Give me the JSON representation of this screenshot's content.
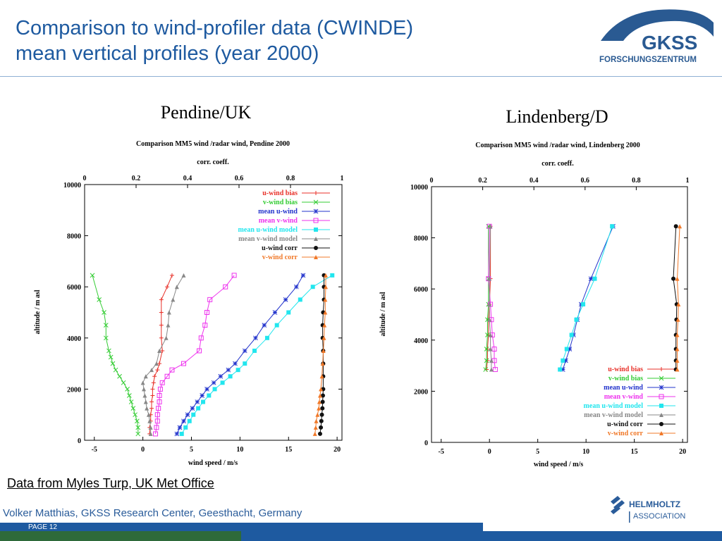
{
  "slide": {
    "title_line1": "Comparison to  wind-profiler data (CWINDE)",
    "title_line2": "mean vertical profiles (year 2000)",
    "source_note": "Data from Myles Turp, UK Met Office",
    "author": "Volker Matthias, GKSS Research Center, Geesthacht, Germany",
    "page_label": "PAGE 12",
    "logo_gkss_text": "GKSS",
    "logo_gkss_subtext": "FORSCHUNGSZENTRUM",
    "logo_helmholtz_line1": "HELMHOLTZ",
    "logo_helmholtz_line2": "ASSOCIATION"
  },
  "colors": {
    "u_wind_bias": "#e8322a",
    "v_wind_bias": "#33cc33",
    "mean_u_wind": "#2233cc",
    "mean_v_wind": "#ee33ee",
    "mean_u_wind_model": "#22e6ee",
    "mean_v_wind_model": "#888888",
    "u_wind_corr": "#111111",
    "v_wind_corr": "#f07828",
    "title_blue": "#1e5aa0"
  },
  "chart_data": [
    {
      "type": "line",
      "panel_title": "Pendine/UK",
      "title": "Comparison MM5 wind /radar wind, Pendine 2000",
      "xlabel": "wind speed / m/s",
      "ylabel": "altitude / m asl",
      "x2label": "corr. coeff.",
      "xlim": [
        -6,
        20.5
      ],
      "ylim": [
        0,
        10000
      ],
      "x2lim": [
        0,
        1
      ],
      "xticks": [
        -5,
        0,
        5,
        10,
        15,
        20
      ],
      "yticks": [
        0,
        2000,
        4000,
        6000,
        8000,
        10000
      ],
      "x2ticks": [
        "0",
        "0.2",
        "0.4",
        "0.6",
        "0.8",
        "1"
      ],
      "legend_position": "top-right",
      "series": [
        {
          "name": "u-wind bias",
          "color_key": "u_wind_bias",
          "marker": "plus",
          "corr": false,
          "points": [
            [
              0.7,
              250
            ],
            [
              0.7,
              500
            ],
            [
              0.8,
              750
            ],
            [
              0.8,
              1000
            ],
            [
              0.9,
              1250
            ],
            [
              0.9,
              1500
            ],
            [
              1.0,
              1750
            ],
            [
              1.0,
              2000
            ],
            [
              1.1,
              2250
            ],
            [
              1.2,
              2500
            ],
            [
              1.5,
              2750
            ],
            [
              1.7,
              3000
            ],
            [
              2.0,
              3500
            ],
            [
              1.9,
              4000
            ],
            [
              1.9,
              4500
            ],
            [
              1.9,
              5000
            ],
            [
              1.9,
              5500
            ],
            [
              2.5,
              6000
            ],
            [
              3.0,
              6450
            ]
          ]
        },
        {
          "name": "v-wind bias",
          "color_key": "v_wind_bias",
          "marker": "x",
          "corr": false,
          "points": [
            [
              -0.5,
              250
            ],
            [
              -0.5,
              500
            ],
            [
              -0.6,
              750
            ],
            [
              -0.8,
              1000
            ],
            [
              -1.0,
              1250
            ],
            [
              -1.2,
              1500
            ],
            [
              -1.4,
              1750
            ],
            [
              -1.6,
              2000
            ],
            [
              -2.0,
              2250
            ],
            [
              -2.4,
              2500
            ],
            [
              -2.8,
              2750
            ],
            [
              -3.1,
              3000
            ],
            [
              -3.3,
              3250
            ],
            [
              -3.5,
              3500
            ],
            [
              -3.8,
              4000
            ],
            [
              -3.8,
              4500
            ],
            [
              -4.0,
              5000
            ],
            [
              -4.5,
              5500
            ],
            [
              -5.2,
              6450
            ]
          ]
        },
        {
          "name": "mean u-wind",
          "color_key": "mean_u_wind",
          "marker": "star",
          "corr": false,
          "points": [
            [
              3.5,
              250
            ],
            [
              3.8,
              500
            ],
            [
              4.2,
              750
            ],
            [
              4.6,
              1000
            ],
            [
              5.1,
              1250
            ],
            [
              5.6,
              1500
            ],
            [
              6.1,
              1750
            ],
            [
              6.6,
              2000
            ],
            [
              7.3,
              2250
            ],
            [
              8.0,
              2500
            ],
            [
              8.8,
              2750
            ],
            [
              9.5,
              3000
            ],
            [
              10.5,
              3500
            ],
            [
              11.6,
              4000
            ],
            [
              12.5,
              4500
            ],
            [
              13.6,
              5000
            ],
            [
              14.7,
              5500
            ],
            [
              15.8,
              6000
            ],
            [
              16.5,
              6450
            ]
          ]
        },
        {
          "name": "mean v-wind",
          "color_key": "mean_v_wind",
          "marker": "square",
          "corr": false,
          "points": [
            [
              1.3,
              250
            ],
            [
              1.4,
              500
            ],
            [
              1.5,
              750
            ],
            [
              1.5,
              1000
            ],
            [
              1.6,
              1250
            ],
            [
              1.7,
              1500
            ],
            [
              1.7,
              1750
            ],
            [
              1.8,
              2000
            ],
            [
              2.0,
              2250
            ],
            [
              2.5,
              2500
            ],
            [
              3.0,
              2750
            ],
            [
              4.2,
              3000
            ],
            [
              5.8,
              3500
            ],
            [
              6.0,
              4000
            ],
            [
              6.4,
              4500
            ],
            [
              6.6,
              5000
            ],
            [
              6.9,
              5500
            ],
            [
              8.5,
              6000
            ],
            [
              9.4,
              6450
            ]
          ]
        },
        {
          "name": "mean u-wind model",
          "color_key": "mean_u_wind_model",
          "marker": "filled-square",
          "corr": false,
          "points": [
            [
              4.0,
              250
            ],
            [
              4.4,
              500
            ],
            [
              4.8,
              750
            ],
            [
              5.2,
              1000
            ],
            [
              5.7,
              1250
            ],
            [
              6.2,
              1500
            ],
            [
              6.8,
              1750
            ],
            [
              7.4,
              2000
            ],
            [
              8.2,
              2250
            ],
            [
              9.0,
              2500
            ],
            [
              9.8,
              2750
            ],
            [
              10.5,
              3000
            ],
            [
              11.5,
              3500
            ],
            [
              12.8,
              4000
            ],
            [
              13.8,
              4500
            ],
            [
              15.0,
              5000
            ],
            [
              16.2,
              5500
            ],
            [
              17.5,
              6000
            ],
            [
              19.5,
              6450
            ]
          ]
        },
        {
          "name": "mean v-wind model",
          "color_key": "mean_v_wind_model",
          "marker": "triangle",
          "corr": false,
          "points": [
            [
              0.8,
              250
            ],
            [
              0.8,
              500
            ],
            [
              0.7,
              750
            ],
            [
              0.6,
              1000
            ],
            [
              0.4,
              1250
            ],
            [
              0.3,
              1500
            ],
            [
              0.2,
              1750
            ],
            [
              0.1,
              2000
            ],
            [
              0.0,
              2250
            ],
            [
              0.3,
              2500
            ],
            [
              0.9,
              2750
            ],
            [
              1.4,
              3000
            ],
            [
              1.7,
              3500
            ],
            [
              2.4,
              4000
            ],
            [
              2.6,
              4500
            ],
            [
              2.7,
              5000
            ],
            [
              3.1,
              5500
            ],
            [
              3.5,
              6000
            ],
            [
              4.2,
              6450
            ]
          ]
        },
        {
          "name": "u-wind corr",
          "color_key": "u_wind_corr",
          "marker": "filled-circle",
          "corr": true,
          "points": [
            [
              0.915,
              250
            ],
            [
              0.918,
              500
            ],
            [
              0.92,
              750
            ],
            [
              0.922,
              1000
            ],
            [
              0.924,
              1250
            ],
            [
              0.925,
              1500
            ],
            [
              0.926,
              1750
            ],
            [
              0.927,
              2000
            ],
            [
              0.927,
              2500
            ],
            [
              0.927,
              3000
            ],
            [
              0.927,
              3500
            ],
            [
              0.925,
              4000
            ],
            [
              0.925,
              4500
            ],
            [
              0.927,
              5000
            ],
            [
              0.93,
              5500
            ],
            [
              0.93,
              6000
            ],
            [
              0.93,
              6450
            ]
          ]
        },
        {
          "name": "v-wind corr",
          "color_key": "v_wind_corr",
          "marker": "triangle",
          "corr": true,
          "points": [
            [
              0.895,
              250
            ],
            [
              0.898,
              500
            ],
            [
              0.9,
              750
            ],
            [
              0.905,
              1000
            ],
            [
              0.91,
              1250
            ],
            [
              0.912,
              1500
            ],
            [
              0.915,
              1750
            ],
            [
              0.918,
              2000
            ],
            [
              0.922,
              2500
            ],
            [
              0.925,
              3000
            ],
            [
              0.928,
              3500
            ],
            [
              0.93,
              4000
            ],
            [
              0.932,
              4500
            ],
            [
              0.935,
              5000
            ],
            [
              0.935,
              5500
            ],
            [
              0.937,
              6000
            ],
            [
              0.937,
              6450
            ]
          ]
        }
      ]
    },
    {
      "type": "line",
      "panel_title": "Lindenberg/D",
      "title": "Comparison MM5 wind /radar wind, Lindenberg 2000",
      "xlabel": "wind speed / m/s",
      "ylabel": "altitude / m asl",
      "x2label": "corr. coeff.",
      "xlim": [
        -6,
        20.5
      ],
      "ylim": [
        0,
        10000
      ],
      "x2lim": [
        0,
        1
      ],
      "xticks": [
        -5,
        0,
        5,
        10,
        15,
        20
      ],
      "yticks": [
        0,
        2000,
        4000,
        6000,
        8000,
        10000
      ],
      "x2ticks": [
        "0",
        "0.2",
        "0.4",
        "0.6",
        "0.8",
        "1"
      ],
      "legend_position": "bottom-right",
      "series": [
        {
          "name": "u-wind bias",
          "color_key": "u_wind_bias",
          "marker": "plus",
          "corr": false,
          "points": [
            [
              -0.3,
              2850
            ],
            [
              -0.2,
              3200
            ],
            [
              -0.2,
              3650
            ],
            [
              -0.1,
              4200
            ],
            [
              -0.1,
              4800
            ],
            [
              0.0,
              5400
            ],
            [
              0.1,
              6400
            ],
            [
              0.1,
              8450
            ]
          ]
        },
        {
          "name": "v-wind bias",
          "color_key": "v_wind_bias",
          "marker": "x",
          "corr": false,
          "points": [
            [
              -0.4,
              2850
            ],
            [
              -0.3,
              3200
            ],
            [
              -0.3,
              3650
            ],
            [
              -0.2,
              4200
            ],
            [
              -0.2,
              4800
            ],
            [
              -0.1,
              5400
            ],
            [
              -0.1,
              6400
            ],
            [
              -0.1,
              8450
            ]
          ]
        },
        {
          "name": "mean u-wind",
          "color_key": "mean_u_wind",
          "marker": "star",
          "corr": false,
          "points": [
            [
              7.6,
              2850
            ],
            [
              7.9,
              3200
            ],
            [
              8.3,
              3650
            ],
            [
              8.7,
              4200
            ],
            [
              9.1,
              4800
            ],
            [
              9.5,
              5400
            ],
            [
              10.5,
              6400
            ],
            [
              12.8,
              8450
            ]
          ]
        },
        {
          "name": "mean v-wind",
          "color_key": "mean_v_wind",
          "marker": "square",
          "corr": false,
          "points": [
            [
              0.6,
              2850
            ],
            [
              0.5,
              3200
            ],
            [
              0.5,
              3650
            ],
            [
              0.3,
              4200
            ],
            [
              0.2,
              4800
            ],
            [
              0.1,
              5400
            ],
            [
              -0.1,
              6400
            ],
            [
              0.0,
              8450
            ]
          ]
        },
        {
          "name": "mean u-wind model",
          "color_key": "mean_u_wind_model",
          "marker": "filled-square",
          "corr": false,
          "points": [
            [
              7.3,
              2850
            ],
            [
              7.6,
              3200
            ],
            [
              8.0,
              3650
            ],
            [
              8.5,
              4200
            ],
            [
              9.0,
              4800
            ],
            [
              9.7,
              5400
            ],
            [
              10.9,
              6400
            ],
            [
              12.7,
              8450
            ]
          ]
        },
        {
          "name": "mean v-wind model",
          "color_key": "mean_v_wind_model",
          "marker": "triangle",
          "corr": false,
          "points": [
            [
              0.2,
              2850
            ],
            [
              0.2,
              3200
            ],
            [
              0.1,
              3650
            ],
            [
              0.1,
              4200
            ],
            [
              0.0,
              4800
            ],
            [
              0.0,
              5400
            ],
            [
              0.0,
              6400
            ],
            [
              0.1,
              8450
            ]
          ]
        },
        {
          "name": "u-wind corr",
          "color_key": "u_wind_corr",
          "marker": "filled-circle",
          "corr": true,
          "points": [
            [
              0.955,
              2850
            ],
            [
              0.955,
              3200
            ],
            [
              0.955,
              3650
            ],
            [
              0.955,
              4200
            ],
            [
              0.957,
              4800
            ],
            [
              0.958,
              5400
            ],
            [
              0.945,
              6400
            ],
            [
              0.955,
              8450
            ]
          ]
        },
        {
          "name": "v-wind corr",
          "color_key": "v_wind_corr",
          "marker": "triangle",
          "corr": true,
          "points": [
            [
              0.96,
              2850
            ],
            [
              0.96,
              3200
            ],
            [
              0.96,
              3650
            ],
            [
              0.96,
              4200
            ],
            [
              0.963,
              4800
            ],
            [
              0.965,
              5400
            ],
            [
              0.96,
              6400
            ],
            [
              0.97,
              8450
            ]
          ]
        }
      ]
    }
  ]
}
